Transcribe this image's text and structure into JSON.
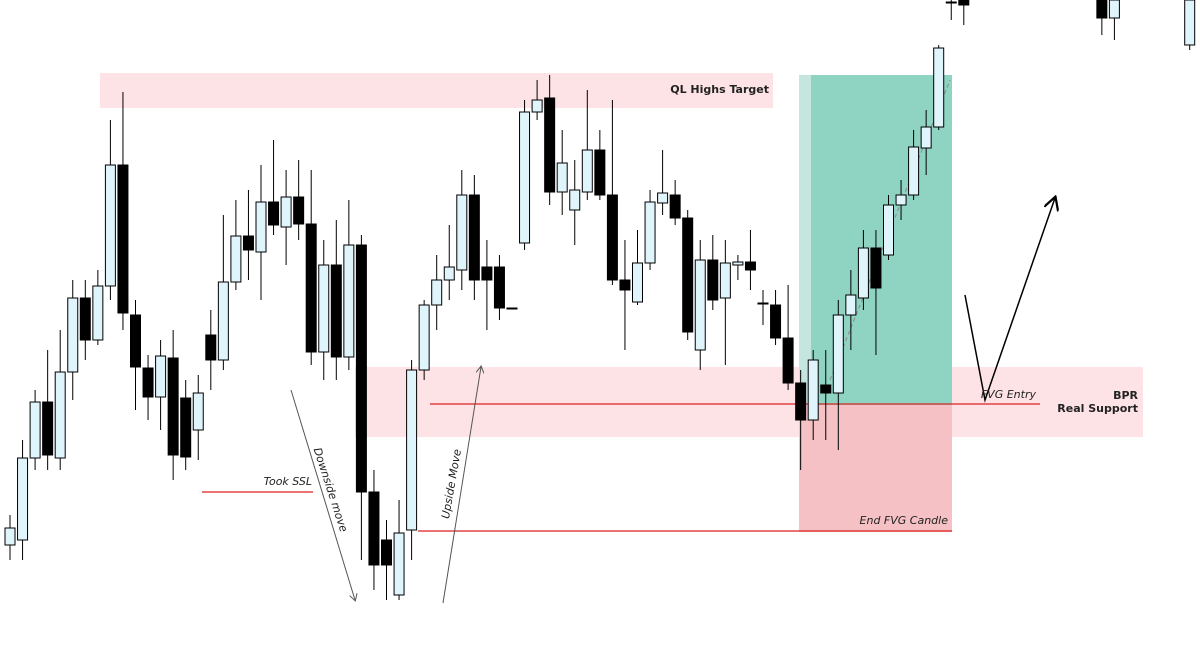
{
  "chart_data": {
    "type": "candlestick",
    "ylim": [
      0,
      670
    ],
    "up_color": "#dff4fb",
    "down_color": "#000000",
    "open": [
      125,
      130,
      212,
      268,
      212,
      298,
      372,
      330,
      384,
      505,
      355,
      302,
      273,
      312,
      272,
      240,
      335,
      310,
      388,
      434,
      418,
      468,
      443,
      473,
      446,
      318,
      405,
      313,
      425,
      178,
      130,
      75,
      140,
      300,
      365,
      390,
      400,
      475,
      403,
      403,
      362,
      427,
      558,
      572,
      478,
      460,
      478,
      520,
      475,
      390,
      368,
      407,
      467,
      475,
      452,
      320,
      410,
      372,
      405,
      408,
      367,
      365,
      332,
      287,
      250,
      285,
      277,
      355,
      372,
      422,
      415,
      465,
      475,
      522,
      543,
      668,
      670,
      null,
      null,
      null,
      null,
      null,
      null,
      null,
      null,
      null,
      null,
      670,
      652,
      null,
      null,
      null,
      null,
      null,
      625
    ],
    "high": [
      155,
      230,
      280,
      320,
      340,
      390,
      390,
      400,
      550,
      578,
      370,
      315,
      330,
      340,
      290,
      295,
      360,
      455,
      470,
      480,
      505,
      530,
      500,
      510,
      500,
      430,
      450,
      470,
      435,
      200,
      150,
      170,
      310,
      370,
      415,
      445,
      500,
      495,
      430,
      415,
      362,
      570,
      590,
      595,
      540,
      510,
      580,
      540,
      570,
      430,
      440,
      480,
      520,
      490,
      460,
      430,
      435,
      430,
      415,
      440,
      380,
      380,
      385,
      300,
      320,
      320,
      370,
      400,
      440,
      440,
      475,
      490,
      540,
      560,
      625,
      670,
      670,
      null,
      null,
      null,
      null,
      null,
      null,
      null,
      null,
      null,
      null,
      670,
      670,
      null,
      null,
      null,
      null,
      null,
      670
    ],
    "low": [
      110,
      110,
      200,
      200,
      200,
      270,
      310,
      325,
      370,
      340,
      260,
      250,
      240,
      190,
      200,
      210,
      280,
      300,
      380,
      390,
      370,
      435,
      405,
      430,
      305,
      290,
      290,
      300,
      110,
      80,
      70,
      70,
      110,
      290,
      340,
      370,
      380,
      370,
      340,
      350,
      361,
      420,
      550,
      465,
      455,
      425,
      470,
      470,
      385,
      320,
      365,
      400,
      455,
      445,
      330,
      300,
      360,
      305,
      390,
      380,
      345,
      325,
      280,
      200,
      230,
      230,
      220,
      320,
      360,
      315,
      410,
      450,
      470,
      495,
      540,
      650,
      645,
      null,
      null,
      null,
      null,
      null,
      null,
      null,
      null,
      null,
      null,
      635,
      630,
      null,
      null,
      null,
      null,
      null,
      620
    ],
    "close": [
      142,
      212,
      268,
      215,
      298,
      372,
      330,
      384,
      505,
      357,
      303,
      273,
      314,
      215,
      213,
      277,
      310,
      388,
      434,
      420,
      468,
      445,
      473,
      446,
      318,
      405,
      313,
      425,
      178,
      105,
      105,
      137,
      300,
      365,
      390,
      403,
      475,
      390,
      390,
      362,
      361,
      558,
      570,
      478,
      507,
      480,
      520,
      475,
      390,
      380,
      407,
      468,
      477,
      452,
      338,
      410,
      370,
      407,
      408,
      400,
      366,
      332,
      287,
      250,
      310,
      277,
      355,
      375,
      422,
      382,
      465,
      475,
      523,
      543,
      622,
      667,
      665,
      null,
      null,
      null,
      null,
      null,
      null,
      null,
      null,
      null,
      null,
      652,
      670,
      null,
      null,
      null,
      null,
      null,
      670
    ],
    "annotations": {
      "target": "QL Highs Target",
      "ssl": "Took SSL",
      "down": "Downside move",
      "up": "Upside Move",
      "entry": "FVG Entry",
      "bpr": "BPR",
      "support": "Real Support",
      "end": "End FVG Candle"
    }
  }
}
